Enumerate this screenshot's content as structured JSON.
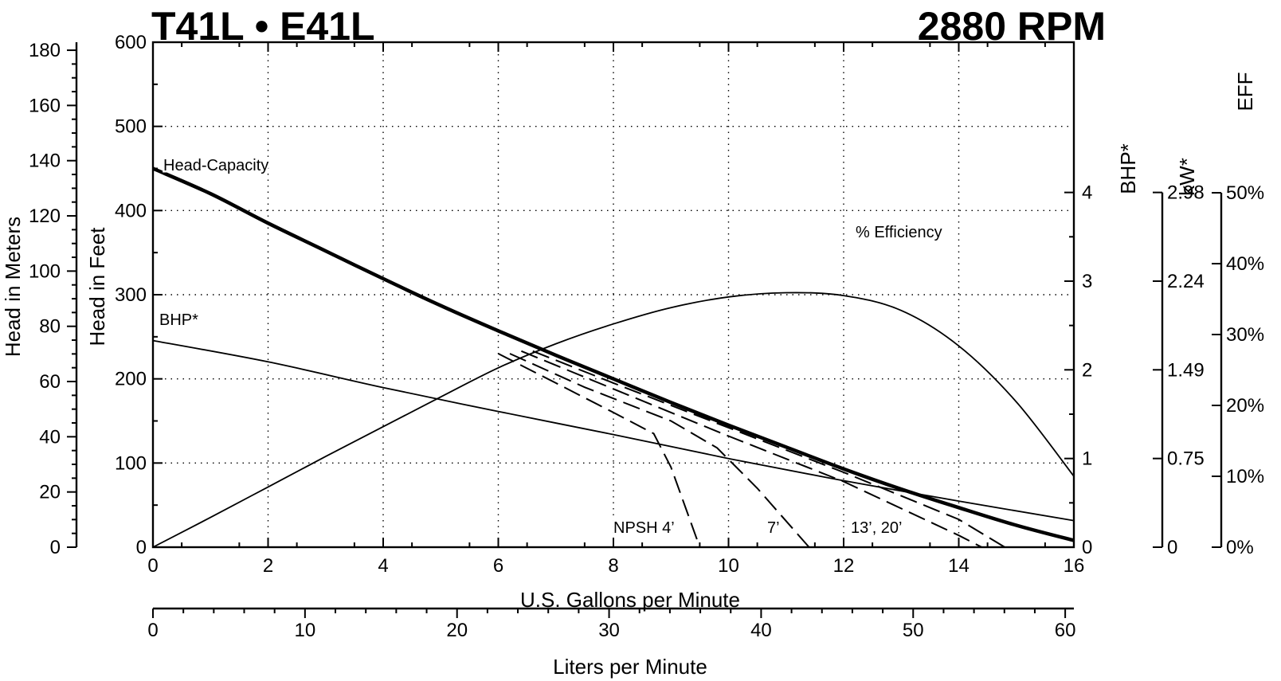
{
  "chart_data": {
    "type": "line",
    "title_left": "T41L • E41L",
    "title_right": "2880 RPM",
    "x_label": "U.S. Gallons per Minute",
    "x2_label": "Liters per Minute",
    "y_left_outer_label": "Head in Meters",
    "y_left_inner_label": "Head in Feet",
    "y_right_bhp_label": "BHP*",
    "y_right_kw_label": "kW*",
    "y_right_eff_label": "EFF",
    "x_range": [
      0,
      16
    ],
    "x_ticks": [
      "0",
      "2",
      "4",
      "6",
      "8",
      "10",
      "12",
      "14",
      "16"
    ],
    "x2_range": [
      0,
      60.57
    ],
    "x2_ticks": [
      "0",
      "10",
      "20",
      "30",
      "40",
      "50",
      "60"
    ],
    "y_feet_range": [
      0,
      600
    ],
    "y_feet_ticks": [
      "0",
      "100",
      "200",
      "300",
      "400",
      "500",
      "600"
    ],
    "y_meters_range": [
      0,
      182.9
    ],
    "y_meters_ticks": [
      "0",
      "20",
      "40",
      "60",
      "80",
      "100",
      "120",
      "140",
      "160",
      "180"
    ],
    "y_bhp_range": [
      0,
      4
    ],
    "y_bhp_ticks": [
      "0",
      "1",
      "2",
      "3",
      "4"
    ],
    "y_kw_ticks": [
      "0",
      "0.75",
      "1.49",
      "2.24",
      "2.98"
    ],
    "y_eff_range": [
      0,
      50
    ],
    "y_eff_ticks": [
      "0%",
      "10%",
      "20%",
      "30%",
      "40%",
      "50%"
    ],
    "grid": true,
    "series": [
      {
        "name": "Head-Capacity",
        "axis": "feet",
        "style": "thick",
        "x": [
          0,
          1,
          2,
          3,
          4,
          5,
          6,
          7,
          8,
          9,
          10,
          11,
          12,
          13,
          14,
          15,
          16
        ],
        "y": [
          450,
          420,
          385,
          352,
          319,
          287,
          257,
          228,
          200,
          172,
          145,
          119,
          93,
          69,
          47,
          26,
          8
        ]
      },
      {
        "name": "BHP*",
        "axis": "bhp",
        "style": "thin",
        "x": [
          0,
          2,
          4,
          6,
          8,
          10,
          12,
          14,
          16
        ],
        "y": [
          2.33,
          2.09,
          1.8,
          1.53,
          1.27,
          1.0,
          0.75,
          0.52,
          0.3
        ]
      },
      {
        "name": "% Efficiency",
        "axis": "eff",
        "style": "thin",
        "x": [
          0,
          1,
          2,
          3,
          4,
          5,
          6,
          7,
          8,
          9,
          10,
          11,
          12,
          13,
          14,
          15,
          16
        ],
        "y": [
          0,
          4.2,
          8.5,
          12.8,
          17,
          21.2,
          25.3,
          28.7,
          31.5,
          33.8,
          35.3,
          35.9,
          35.5,
          33.4,
          28.4,
          20.5,
          10.0
        ]
      },
      {
        "name": "NPSH 4’",
        "axis": "feet",
        "style": "dashed",
        "x": [
          6.0,
          7.0,
          8.0,
          8.7,
          9.0,
          9.5
        ],
        "y": [
          230,
          195,
          160,
          135,
          95,
          0
        ]
      },
      {
        "name": "7’",
        "axis": "feet",
        "style": "dashed",
        "x": [
          6.2,
          7.5,
          9.0,
          9.8,
          10.5,
          11.4
        ],
        "y": [
          230,
          190,
          150,
          118,
          70,
          0
        ]
      },
      {
        "name": "13’, 20’",
        "axis": "feet",
        "style": "dashed",
        "x": [
          6.4,
          8.0,
          10.0,
          12.0,
          14.0,
          14.4
        ],
        "y": [
          233,
          188,
          132,
          78,
          14,
          0
        ]
      },
      {
        "name": "",
        "axis": "feet",
        "style": "dashed",
        "x": [
          6.6,
          8.0,
          10.0,
          12.0,
          14.0,
          14.8
        ],
        "y": [
          233,
          195,
          142,
          89,
          33,
          0
        ]
      }
    ],
    "annotations": [
      {
        "text": "Head-Capacity"
      },
      {
        "text": "BHP*"
      },
      {
        "text": "% Efficiency"
      },
      {
        "text": "NPSH 4’"
      },
      {
        "text": "7’"
      },
      {
        "text": "13’, 20’"
      }
    ]
  }
}
